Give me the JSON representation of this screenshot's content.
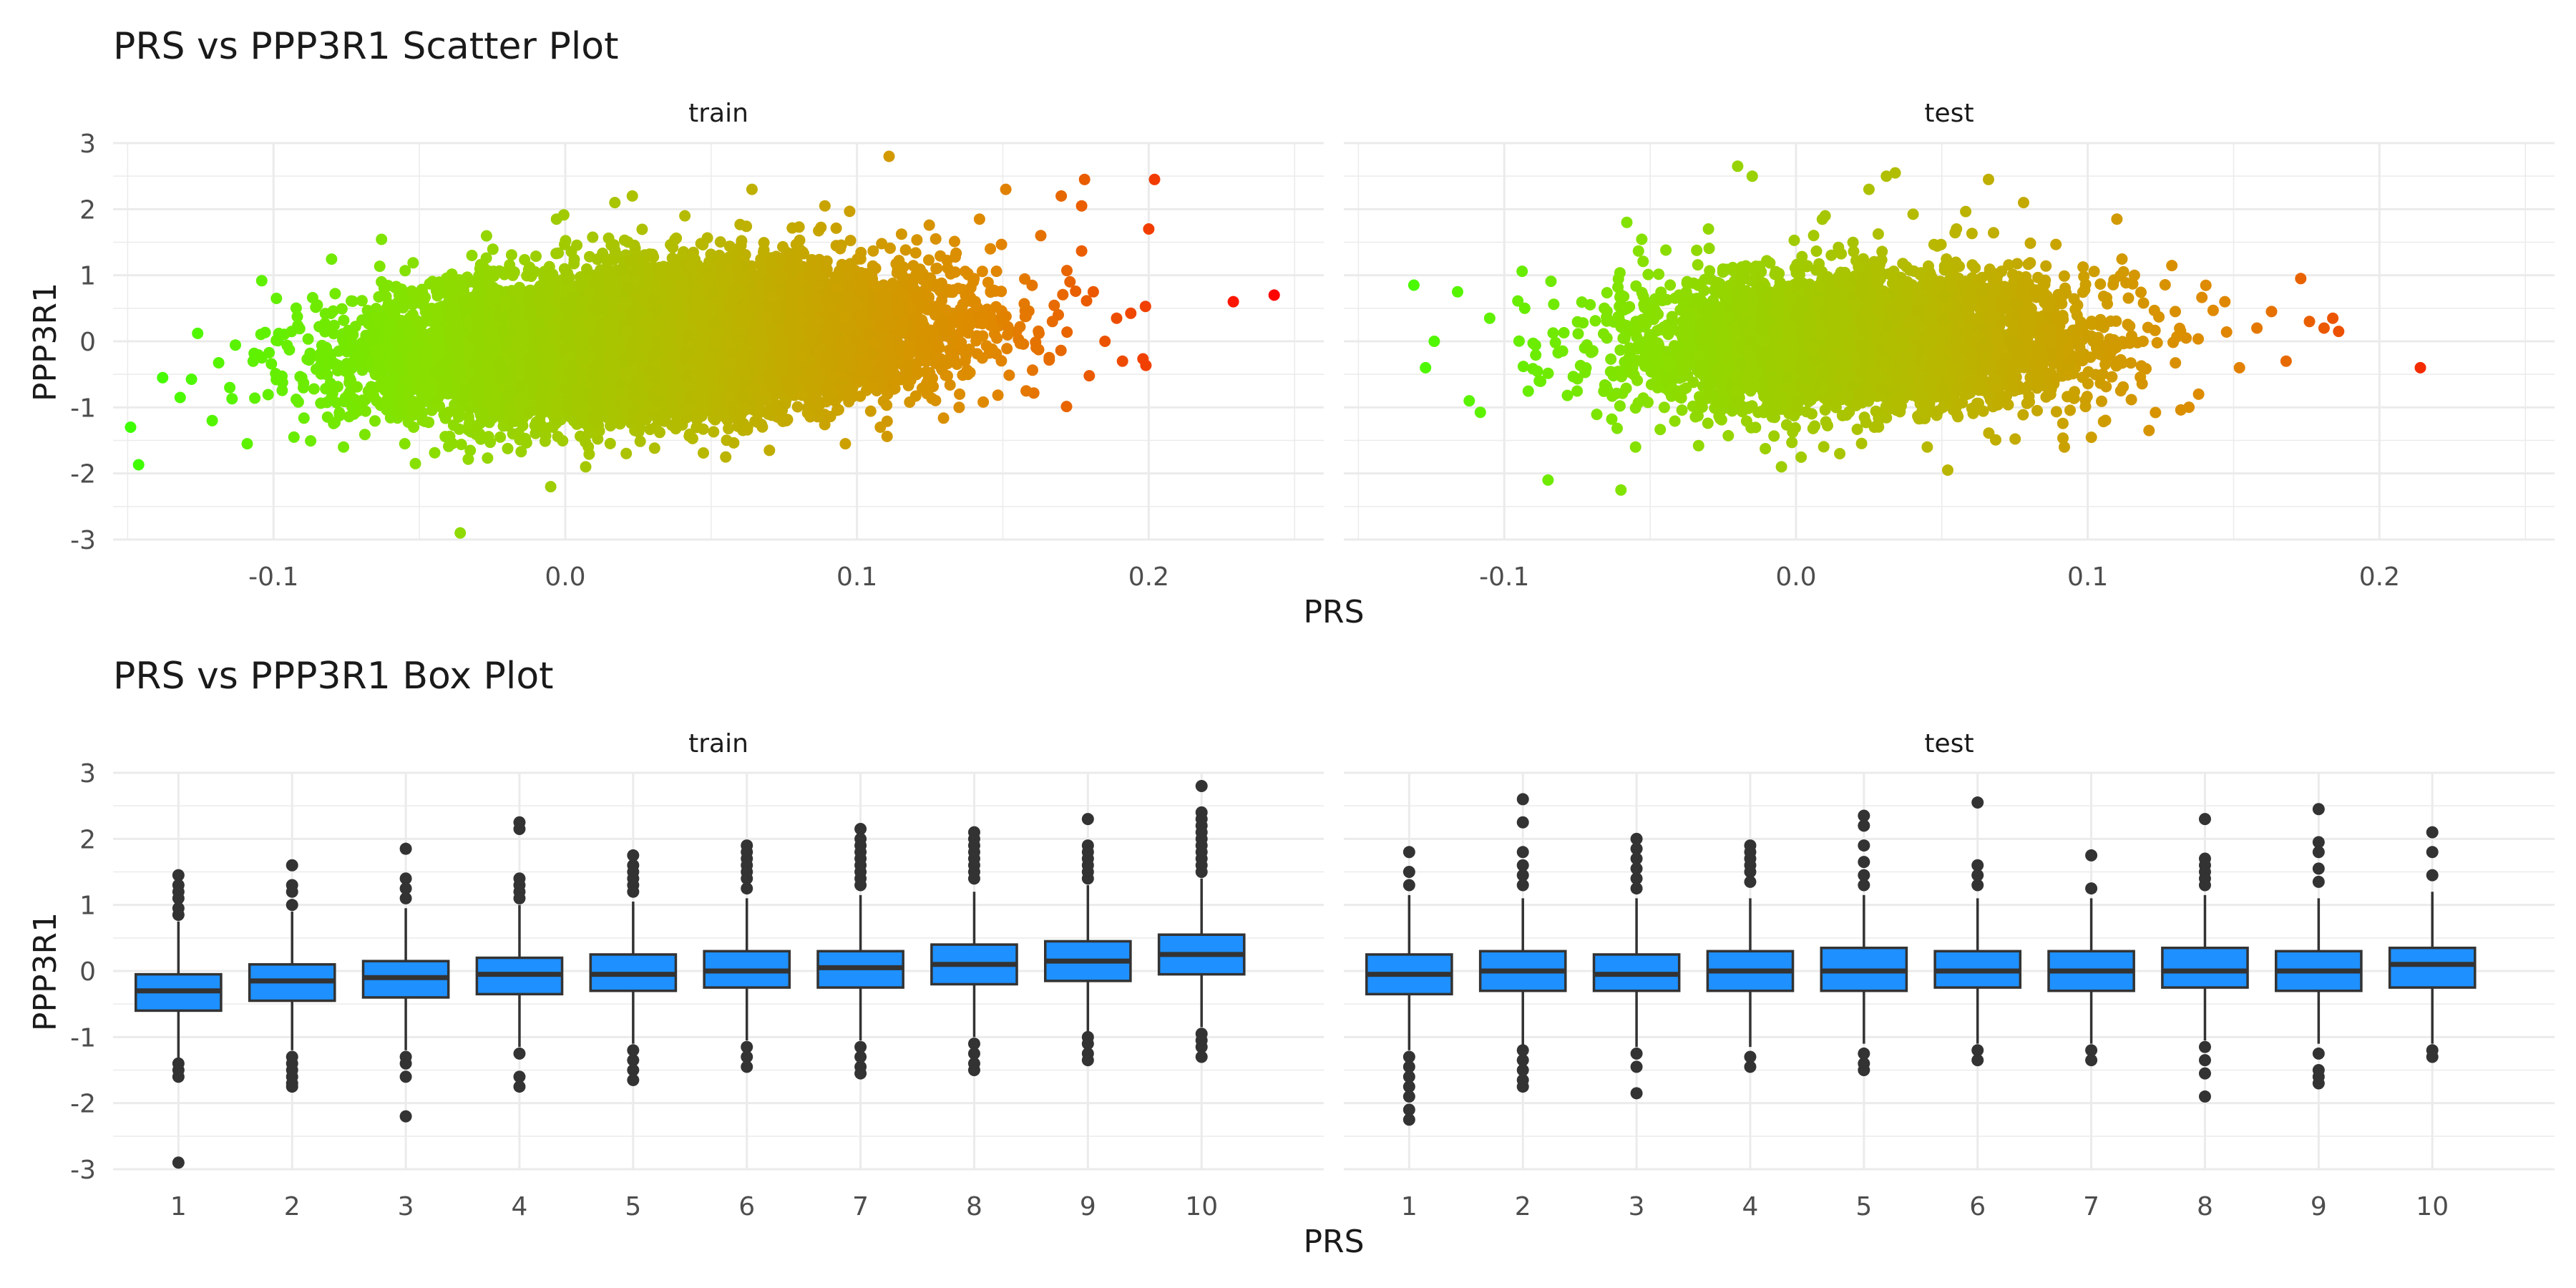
{
  "figure": {
    "plots": [
      {
        "title": "PRS vs PPP3R1 Scatter Plot",
        "xlabel": "PRS",
        "ylabel": "PPP3R1",
        "panels": [
          "train",
          "test"
        ]
      },
      {
        "title": "PRS vs PPP3R1 Box Plot",
        "xlabel": "PRS",
        "ylabel": "PPP3R1",
        "panels": [
          "train",
          "test"
        ]
      }
    ]
  },
  "colors": {
    "gradient": [
      "#3dff00",
      "#88e000",
      "#b8b800",
      "#e08800",
      "#ff0000"
    ],
    "box_fill": "#1e90ff",
    "box_line": "#333333",
    "outlier": "#333333",
    "grid": "#ebebeb"
  },
  "chart_data": [
    {
      "type": "scatter",
      "title": "PRS vs PPP3R1 Scatter Plot",
      "xlabel": "PRS",
      "ylabel": "PPP3R1",
      "xlim": [
        -0.155,
        0.26
      ],
      "ylim": [
        -3,
        3
      ],
      "xticks": [
        "-0.1",
        "0.0",
        "0.1",
        "0.2"
      ],
      "yticks": [
        "3",
        "2",
        "1",
        "0",
        "-1",
        "-2",
        "-3"
      ],
      "color_by": "PRS",
      "grid": true,
      "legend": "none",
      "facets": [
        {
          "label": "train",
          "approx_dense_cloud": {
            "x_mean": 0.03,
            "x_sd": 0.045,
            "y_mean": 0.0,
            "y_sd": 0.6,
            "slope": 2.5,
            "approx_n": 12000
          },
          "points": [
            [
              -0.149,
              -1.3
            ],
            [
              -0.138,
              -0.55
            ],
            [
              -0.132,
              -0.85
            ],
            [
              -0.126,
              0.12
            ],
            [
              -0.121,
              -1.2
            ],
            [
              -0.115,
              -0.7
            ],
            [
              -0.109,
              -1.55
            ],
            [
              -0.104,
              -0.25
            ],
            [
              -0.099,
              0.65
            ],
            [
              -0.093,
              -1.45
            ],
            [
              -0.085,
              0.55
            ],
            [
              -0.076,
              -1.6
            ],
            [
              -0.063,
              0.9
            ],
            [
              -0.055,
              -1.55
            ],
            [
              -0.036,
              -2.9
            ],
            [
              -0.032,
              1.3
            ],
            [
              -0.005,
              -2.2
            ],
            [
              -0.003,
              1.85
            ],
            [
              0.007,
              -1.9
            ],
            [
              0.017,
              2.1
            ],
            [
              0.023,
              2.2
            ],
            [
              0.041,
              1.9
            ],
            [
              0.055,
              -1.75
            ],
            [
              0.064,
              2.3
            ],
            [
              0.07,
              -1.65
            ],
            [
              0.089,
              2.05
            ],
            [
              0.096,
              -1.55
            ],
            [
              0.111,
              2.8
            ],
            [
              0.108,
              -1.3
            ],
            [
              0.127,
              1.55
            ],
            [
              0.135,
              -1.0
            ],
            [
              0.142,
              1.85
            ],
            [
              0.151,
              2.3
            ],
            [
              0.158,
              -0.75
            ],
            [
              0.163,
              1.6
            ],
            [
              0.167,
              0.3
            ],
            [
              0.17,
              2.2
            ],
            [
              0.173,
              0.9
            ],
            [
              0.177,
              2.05
            ],
            [
              0.181,
              0.75
            ],
            [
              0.185,
              0.0
            ],
            [
              0.189,
              0.35
            ],
            [
              0.191,
              -0.3
            ],
            [
              0.178,
              2.45
            ],
            [
              0.202,
              2.45
            ],
            [
              0.2,
              1.7
            ],
            [
              0.229,
              0.6
            ],
            [
              0.243,
              0.7
            ]
          ]
        },
        {
          "label": "test",
          "approx_dense_cloud": {
            "x_mean": 0.02,
            "x_sd": 0.038,
            "y_mean": 0.0,
            "y_sd": 0.6,
            "slope": 0.0,
            "approx_n": 4500
          },
          "points": [
            [
              -0.131,
              0.85
            ],
            [
              -0.124,
              0.0
            ],
            [
              -0.127,
              -0.4
            ],
            [
              -0.116,
              0.75
            ],
            [
              -0.112,
              -0.9
            ],
            [
              -0.105,
              0.35
            ],
            [
              -0.093,
              0.5
            ],
            [
              -0.088,
              -0.6
            ],
            [
              -0.085,
              -2.1
            ],
            [
              -0.06,
              -2.25
            ],
            [
              -0.055,
              -1.6
            ],
            [
              -0.058,
              1.8
            ],
            [
              -0.03,
              1.7
            ],
            [
              -0.02,
              2.65
            ],
            [
              -0.015,
              2.5
            ],
            [
              -0.005,
              -1.9
            ],
            [
              0.01,
              1.9
            ],
            [
              0.015,
              -1.7
            ],
            [
              0.025,
              2.3
            ],
            [
              0.031,
              2.5
            ],
            [
              0.034,
              2.55
            ],
            [
              0.045,
              -1.6
            ],
            [
              0.052,
              -1.95
            ],
            [
              0.055,
              1.7
            ],
            [
              0.066,
              2.45
            ],
            [
              0.078,
              2.1
            ],
            [
              0.092,
              -1.6
            ],
            [
              0.11,
              1.85
            ],
            [
              0.116,
              1.0
            ],
            [
              0.121,
              -1.35
            ],
            [
              0.13,
              0.45
            ],
            [
              0.138,
              -0.8
            ],
            [
              0.147,
              0.6
            ],
            [
              0.152,
              -0.4
            ],
            [
              0.158,
              0.2
            ],
            [
              0.163,
              0.45
            ],
            [
              0.168,
              -0.3
            ],
            [
              0.173,
              0.95
            ],
            [
              0.176,
              0.3
            ],
            [
              0.181,
              0.2
            ],
            [
              0.184,
              0.35
            ],
            [
              0.186,
              0.15
            ],
            [
              0.214,
              -0.4
            ]
          ]
        }
      ]
    },
    {
      "type": "box",
      "title": "PRS vs PPP3R1 Box Plot",
      "xlabel": "PRS",
      "ylabel": "PPP3R1",
      "categories": [
        "1",
        "2",
        "3",
        "4",
        "5",
        "6",
        "7",
        "8",
        "9",
        "10"
      ],
      "ylim": [
        -3,
        3
      ],
      "yticks": [
        "3",
        "2",
        "1",
        "0",
        "-1",
        "-2",
        "-3"
      ],
      "grid": true,
      "legend": "none",
      "facets": [
        {
          "label": "train",
          "boxes": [
            {
              "q1": -0.6,
              "median": -0.3,
              "q3": -0.05,
              "lower": -1.35,
              "upper": 0.75,
              "outliers": [
                1.45,
                1.3,
                1.2,
                1.1,
                0.95,
                0.85,
                -1.4,
                -1.5,
                -1.6,
                -2.9
              ]
            },
            {
              "q1": -0.45,
              "median": -0.15,
              "q3": 0.1,
              "lower": -1.2,
              "upper": 0.9,
              "outliers": [
                1.6,
                1.3,
                1.2,
                1.0,
                -1.3,
                -1.4,
                -1.5,
                -1.6,
                -1.7,
                -1.75
              ]
            },
            {
              "q1": -0.4,
              "median": -0.1,
              "q3": 0.15,
              "lower": -1.2,
              "upper": 0.95,
              "outliers": [
                1.85,
                1.4,
                1.25,
                1.1,
                -1.3,
                -1.4,
                -1.6,
                -2.2
              ]
            },
            {
              "q1": -0.35,
              "median": -0.05,
              "q3": 0.2,
              "lower": -1.15,
              "upper": 1.0,
              "outliers": [
                2.25,
                2.15,
                1.4,
                1.3,
                1.2,
                1.1,
                -1.25,
                -1.6,
                -1.75
              ]
            },
            {
              "q1": -0.3,
              "median": -0.05,
              "q3": 0.25,
              "lower": -1.1,
              "upper": 1.05,
              "outliers": [
                1.75,
                1.6,
                1.5,
                1.4,
                1.3,
                1.2,
                -1.2,
                -1.35,
                -1.5,
                -1.65
              ]
            },
            {
              "q1": -0.25,
              "median": 0.0,
              "q3": 0.3,
              "lower": -1.05,
              "upper": 1.1,
              "outliers": [
                1.9,
                1.8,
                1.7,
                1.6,
                1.5,
                1.4,
                1.25,
                -1.15,
                -1.3,
                -1.45
              ]
            },
            {
              "q1": -0.25,
              "median": 0.05,
              "q3": 0.3,
              "lower": -1.05,
              "upper": 1.15,
              "outliers": [
                2.15,
                2.0,
                1.9,
                1.8,
                1.7,
                1.6,
                1.5,
                1.4,
                1.3,
                -1.15,
                -1.3,
                -1.45,
                -1.55
              ]
            },
            {
              "q1": -0.2,
              "median": 0.1,
              "q3": 0.4,
              "lower": -1.0,
              "upper": 1.2,
              "outliers": [
                2.1,
                2.0,
                1.9,
                1.8,
                1.7,
                1.6,
                1.5,
                1.4,
                -1.1,
                -1.25,
                -1.4,
                -1.5
              ]
            },
            {
              "q1": -0.15,
              "median": 0.15,
              "q3": 0.45,
              "lower": -0.95,
              "upper": 1.3,
              "outliers": [
                2.3,
                1.9,
                1.8,
                1.7,
                1.6,
                1.5,
                1.4,
                -1.0,
                -1.1,
                -1.25,
                -1.35
              ]
            },
            {
              "q1": -0.05,
              "median": 0.25,
              "q3": 0.55,
              "lower": -0.85,
              "upper": 1.4,
              "outliers": [
                2.8,
                2.4,
                2.3,
                2.2,
                2.1,
                2.0,
                1.9,
                1.8,
                1.7,
                1.6,
                1.5,
                -0.95,
                -1.05,
                -1.15,
                -1.3
              ]
            }
          ]
        },
        {
          "label": "test",
          "boxes": [
            {
              "q1": -0.35,
              "median": -0.05,
              "q3": 0.25,
              "lower": -1.2,
              "upper": 1.15,
              "outliers": [
                1.8,
                1.5,
                1.3,
                -1.3,
                -1.45,
                -1.6,
                -1.75,
                -1.9,
                -2.1,
                -2.25
              ]
            },
            {
              "q1": -0.3,
              "median": 0.0,
              "q3": 0.3,
              "lower": -1.15,
              "upper": 1.1,
              "outliers": [
                2.6,
                2.25,
                1.8,
                1.6,
                1.45,
                1.3,
                -1.2,
                -1.35,
                -1.5,
                -1.65,
                -1.75
              ]
            },
            {
              "q1": -0.3,
              "median": -0.05,
              "q3": 0.25,
              "lower": -1.15,
              "upper": 1.1,
              "outliers": [
                2.0,
                1.85,
                1.7,
                1.55,
                1.4,
                1.25,
                -1.25,
                -1.45,
                -1.85
              ]
            },
            {
              "q1": -0.3,
              "median": 0.0,
              "q3": 0.3,
              "lower": -1.15,
              "upper": 1.1,
              "outliers": [
                1.9,
                1.8,
                1.7,
                1.6,
                1.5,
                1.35,
                -1.3,
                -1.45
              ]
            },
            {
              "q1": -0.3,
              "median": 0.0,
              "q3": 0.35,
              "lower": -1.1,
              "upper": 1.15,
              "outliers": [
                2.35,
                2.2,
                1.9,
                1.65,
                1.45,
                1.3,
                -1.25,
                -1.4,
                -1.5
              ]
            },
            {
              "q1": -0.25,
              "median": 0.0,
              "q3": 0.3,
              "lower": -1.1,
              "upper": 1.1,
              "outliers": [
                2.55,
                1.6,
                1.45,
                1.3,
                -1.2,
                -1.35
              ]
            },
            {
              "q1": -0.3,
              "median": 0.0,
              "q3": 0.3,
              "lower": -1.1,
              "upper": 1.1,
              "outliers": [
                1.75,
                1.25,
                -1.2,
                -1.35
              ]
            },
            {
              "q1": -0.25,
              "median": 0.0,
              "q3": 0.35,
              "lower": -1.05,
              "upper": 1.15,
              "outliers": [
                2.3,
                1.7,
                1.6,
                1.5,
                1.4,
                1.3,
                -1.15,
                -1.35,
                -1.55,
                -1.9
              ]
            },
            {
              "q1": -0.3,
              "median": 0.0,
              "q3": 0.3,
              "lower": -1.1,
              "upper": 1.1,
              "outliers": [
                2.45,
                1.95,
                1.8,
                1.55,
                1.35,
                -1.25,
                -1.5,
                -1.6,
                -1.7
              ]
            },
            {
              "q1": -0.25,
              "median": 0.1,
              "q3": 0.35,
              "lower": -1.1,
              "upper": 1.2,
              "outliers": [
                2.1,
                1.8,
                1.45,
                -1.2,
                -1.3
              ]
            }
          ]
        }
      ]
    }
  ]
}
